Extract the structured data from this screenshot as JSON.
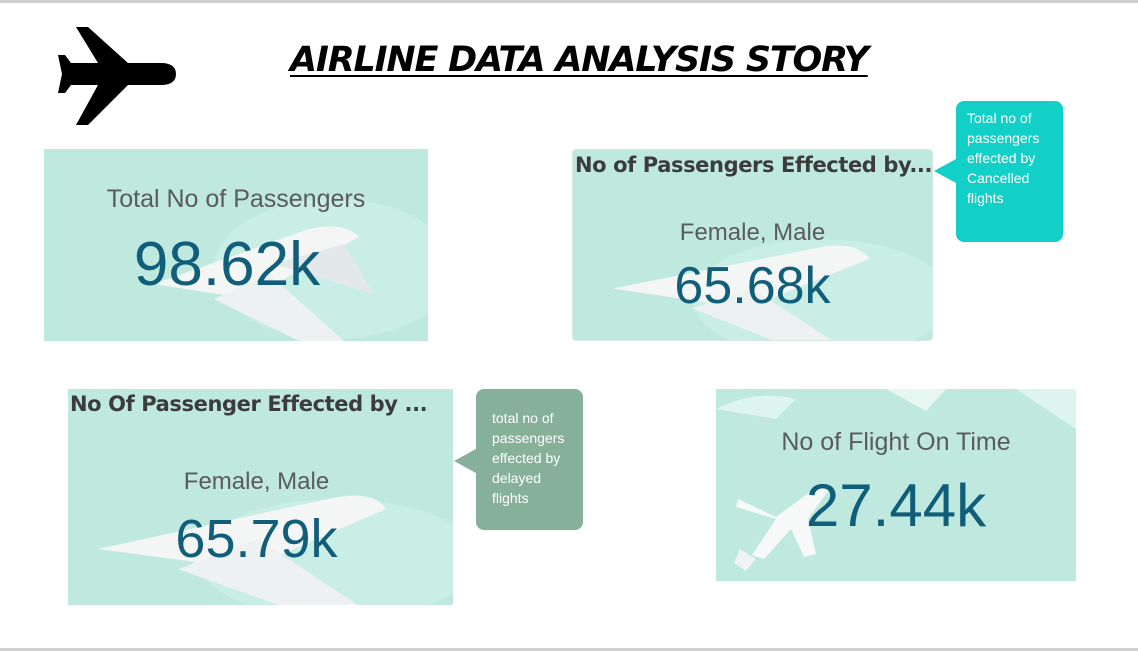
{
  "page": {
    "title": "AIRLINE DATA ANALYSIS STORY",
    "logo_icon": "airplane-icon"
  },
  "cards": {
    "total_passengers": {
      "label": "Total No of Passengers",
      "value": "98.62k"
    },
    "cancelled": {
      "header": "No of Passengers Effected by...",
      "subtitle": "Female, Male",
      "value": "65.68k"
    },
    "delayed": {
      "header": "No Of Passenger Effected by ...",
      "subtitle": "Female, Male",
      "value": "65.79k"
    },
    "on_time": {
      "label": "No of Flight On Time",
      "value": "27.44k"
    }
  },
  "tooltips": {
    "cancelled": {
      "text": "Total no of passengers effected by Cancelled flights",
      "color": "#12cfc7"
    },
    "delayed": {
      "text": "total no of passengers effected by delayed flights",
      "color": "#86b09a"
    }
  },
  "colors": {
    "card_bg": "#bfe9df",
    "value": "#115e7b",
    "label": "#5b5b5b"
  }
}
